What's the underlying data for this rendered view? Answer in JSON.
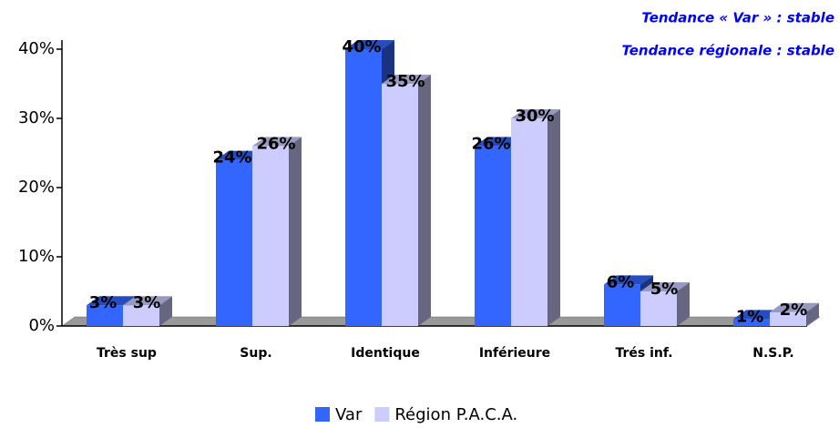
{
  "chart_data": {
    "type": "bar3d",
    "annotations": [
      "Tendance « Var » : stable",
      "Tendance régionale : stable"
    ],
    "categories": [
      "Très sup",
      "Sup.",
      "Identique",
      "Inférieure",
      "Trés inf.",
      "N.S.P."
    ],
    "series": [
      {
        "name": "Var",
        "color": "#3366ff",
        "values": [
          3,
          24,
          40,
          26,
          6,
          1
        ],
        "value_labels": [
          "3%",
          "24%",
          "40%",
          "26%",
          "6%",
          "1%"
        ]
      },
      {
        "name": "Région P.A.C.A.",
        "color": "#ccccff",
        "values": [
          3,
          26,
          35,
          30,
          5,
          2
        ],
        "value_labels": [
          "3%",
          "26%",
          "35%",
          "30%",
          "5%",
          "2%"
        ]
      }
    ],
    "ylim": [
      0,
      40
    ],
    "yticks": [
      {
        "value": 0,
        "label": "0%"
      },
      {
        "value": 10,
        "label": "10%"
      },
      {
        "value": 20,
        "label": "20%"
      },
      {
        "value": 30,
        "label": "30%"
      },
      {
        "value": 40,
        "label": "40%"
      }
    ],
    "floor_color": "#999999"
  }
}
